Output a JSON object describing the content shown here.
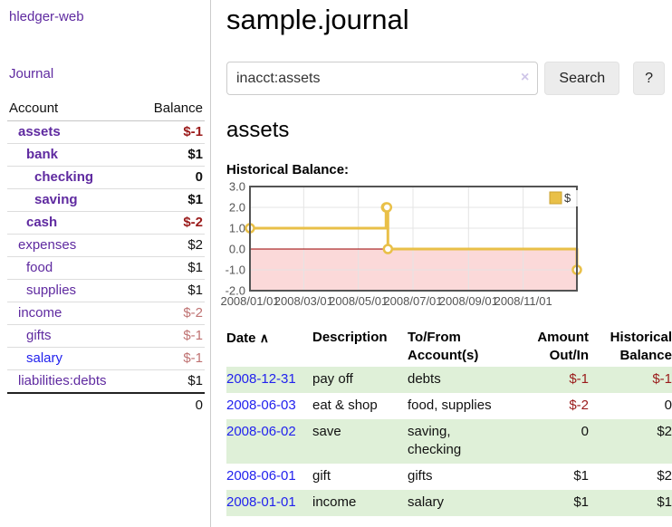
{
  "sidebar": {
    "app_title": "hledger-web",
    "journal_link": "Journal",
    "accounts_header": {
      "account": "Account",
      "balance": "Balance"
    },
    "accounts": [
      {
        "name": "assets",
        "balance": "$-1",
        "indent": 0,
        "bold": true,
        "balance_class": "neg-strong"
      },
      {
        "name": "bank",
        "balance": "$1",
        "indent": 1,
        "bold": true,
        "balance_class": ""
      },
      {
        "name": "checking",
        "balance": "0",
        "indent": 2,
        "bold": true,
        "balance_class": ""
      },
      {
        "name": "saving",
        "balance": "$1",
        "indent": 2,
        "bold": true,
        "balance_class": ""
      },
      {
        "name": "cash",
        "balance": "$-2",
        "indent": 1,
        "bold": true,
        "balance_class": "neg-strong"
      },
      {
        "name": "expenses",
        "balance": "$2",
        "indent": 0,
        "bold": false,
        "balance_class": ""
      },
      {
        "name": "food",
        "balance": "$1",
        "indent": 1,
        "bold": false,
        "balance_class": ""
      },
      {
        "name": "supplies",
        "balance": "$1",
        "indent": 1,
        "bold": false,
        "balance_class": ""
      },
      {
        "name": "income",
        "balance": "$-2",
        "indent": 0,
        "bold": false,
        "balance_class": "neg-soft"
      },
      {
        "name": "gifts",
        "balance": "$-1",
        "indent": 1,
        "bold": false,
        "balance_class": "neg-soft"
      },
      {
        "name": "salary",
        "balance": "$-1",
        "indent": 1,
        "bold": false,
        "balance_class": "neg-soft",
        "link_class": "blue"
      },
      {
        "name": "liabilities:debts",
        "balance": "$1",
        "indent": 0,
        "bold": false,
        "balance_class": ""
      }
    ],
    "total": "0"
  },
  "main": {
    "title": "sample.journal",
    "search": {
      "value": "inacct:assets",
      "clear_icon": "×",
      "search_label": "Search",
      "help_label": "?"
    },
    "account_heading": "assets",
    "chart_heading": "Historical Balance:"
  },
  "chart_data": {
    "type": "line",
    "title": "Historical Balance",
    "steps": true,
    "series": [
      {
        "name": "$",
        "color": "#e9c048",
        "points": [
          [
            "2008-01-01",
            1
          ],
          [
            "2008-06-01",
            2
          ],
          [
            "2008-06-02",
            2
          ],
          [
            "2008-06-03",
            0
          ],
          [
            "2008-12-31",
            -1
          ]
        ]
      }
    ],
    "x_range": [
      "2008-01-01",
      "2008-12-31"
    ],
    "x_ticks": [
      "2008/01/01",
      "2008/03/01",
      "2008/05/01",
      "2008/07/01",
      "2008/09/01",
      "2008/11/01"
    ],
    "y_ticks": [
      3.0,
      2.0,
      1.0,
      0.0,
      -1.0,
      -2.0
    ],
    "ylim": [
      -2,
      3
    ],
    "grid": true,
    "legend_position": "top-right",
    "negative_region_color": "#fbd9d9",
    "zero_line_color": "#990000",
    "grid_color": "#e4e4e4",
    "border_color": "#545454"
  },
  "transactions": {
    "headers": [
      "Date",
      "Description",
      "To/From Account(s)",
      "Amount Out/In",
      "Historical Balance"
    ],
    "sort_icon": "∧",
    "rows": [
      {
        "date": "2008-12-31",
        "description": "pay off",
        "accounts": "debts",
        "amount": "$-1",
        "amount_neg": true,
        "balance": "$-1",
        "balance_neg": true
      },
      {
        "date": "2008-06-03",
        "description": "eat & shop",
        "accounts": "food, supplies",
        "amount": "$-2",
        "amount_neg": true,
        "balance": "0",
        "balance_neg": false
      },
      {
        "date": "2008-06-02",
        "description": "save",
        "accounts": "saving, checking",
        "amount": "0",
        "amount_neg": false,
        "balance": "$2",
        "balance_neg": false
      },
      {
        "date": "2008-06-01",
        "description": "gift",
        "accounts": "gifts",
        "amount": "$1",
        "amount_neg": false,
        "balance": "$2",
        "balance_neg": false
      },
      {
        "date": "2008-01-01",
        "description": "income",
        "accounts": "salary",
        "amount": "$1",
        "amount_neg": false,
        "balance": "$1",
        "balance_neg": false
      }
    ]
  }
}
